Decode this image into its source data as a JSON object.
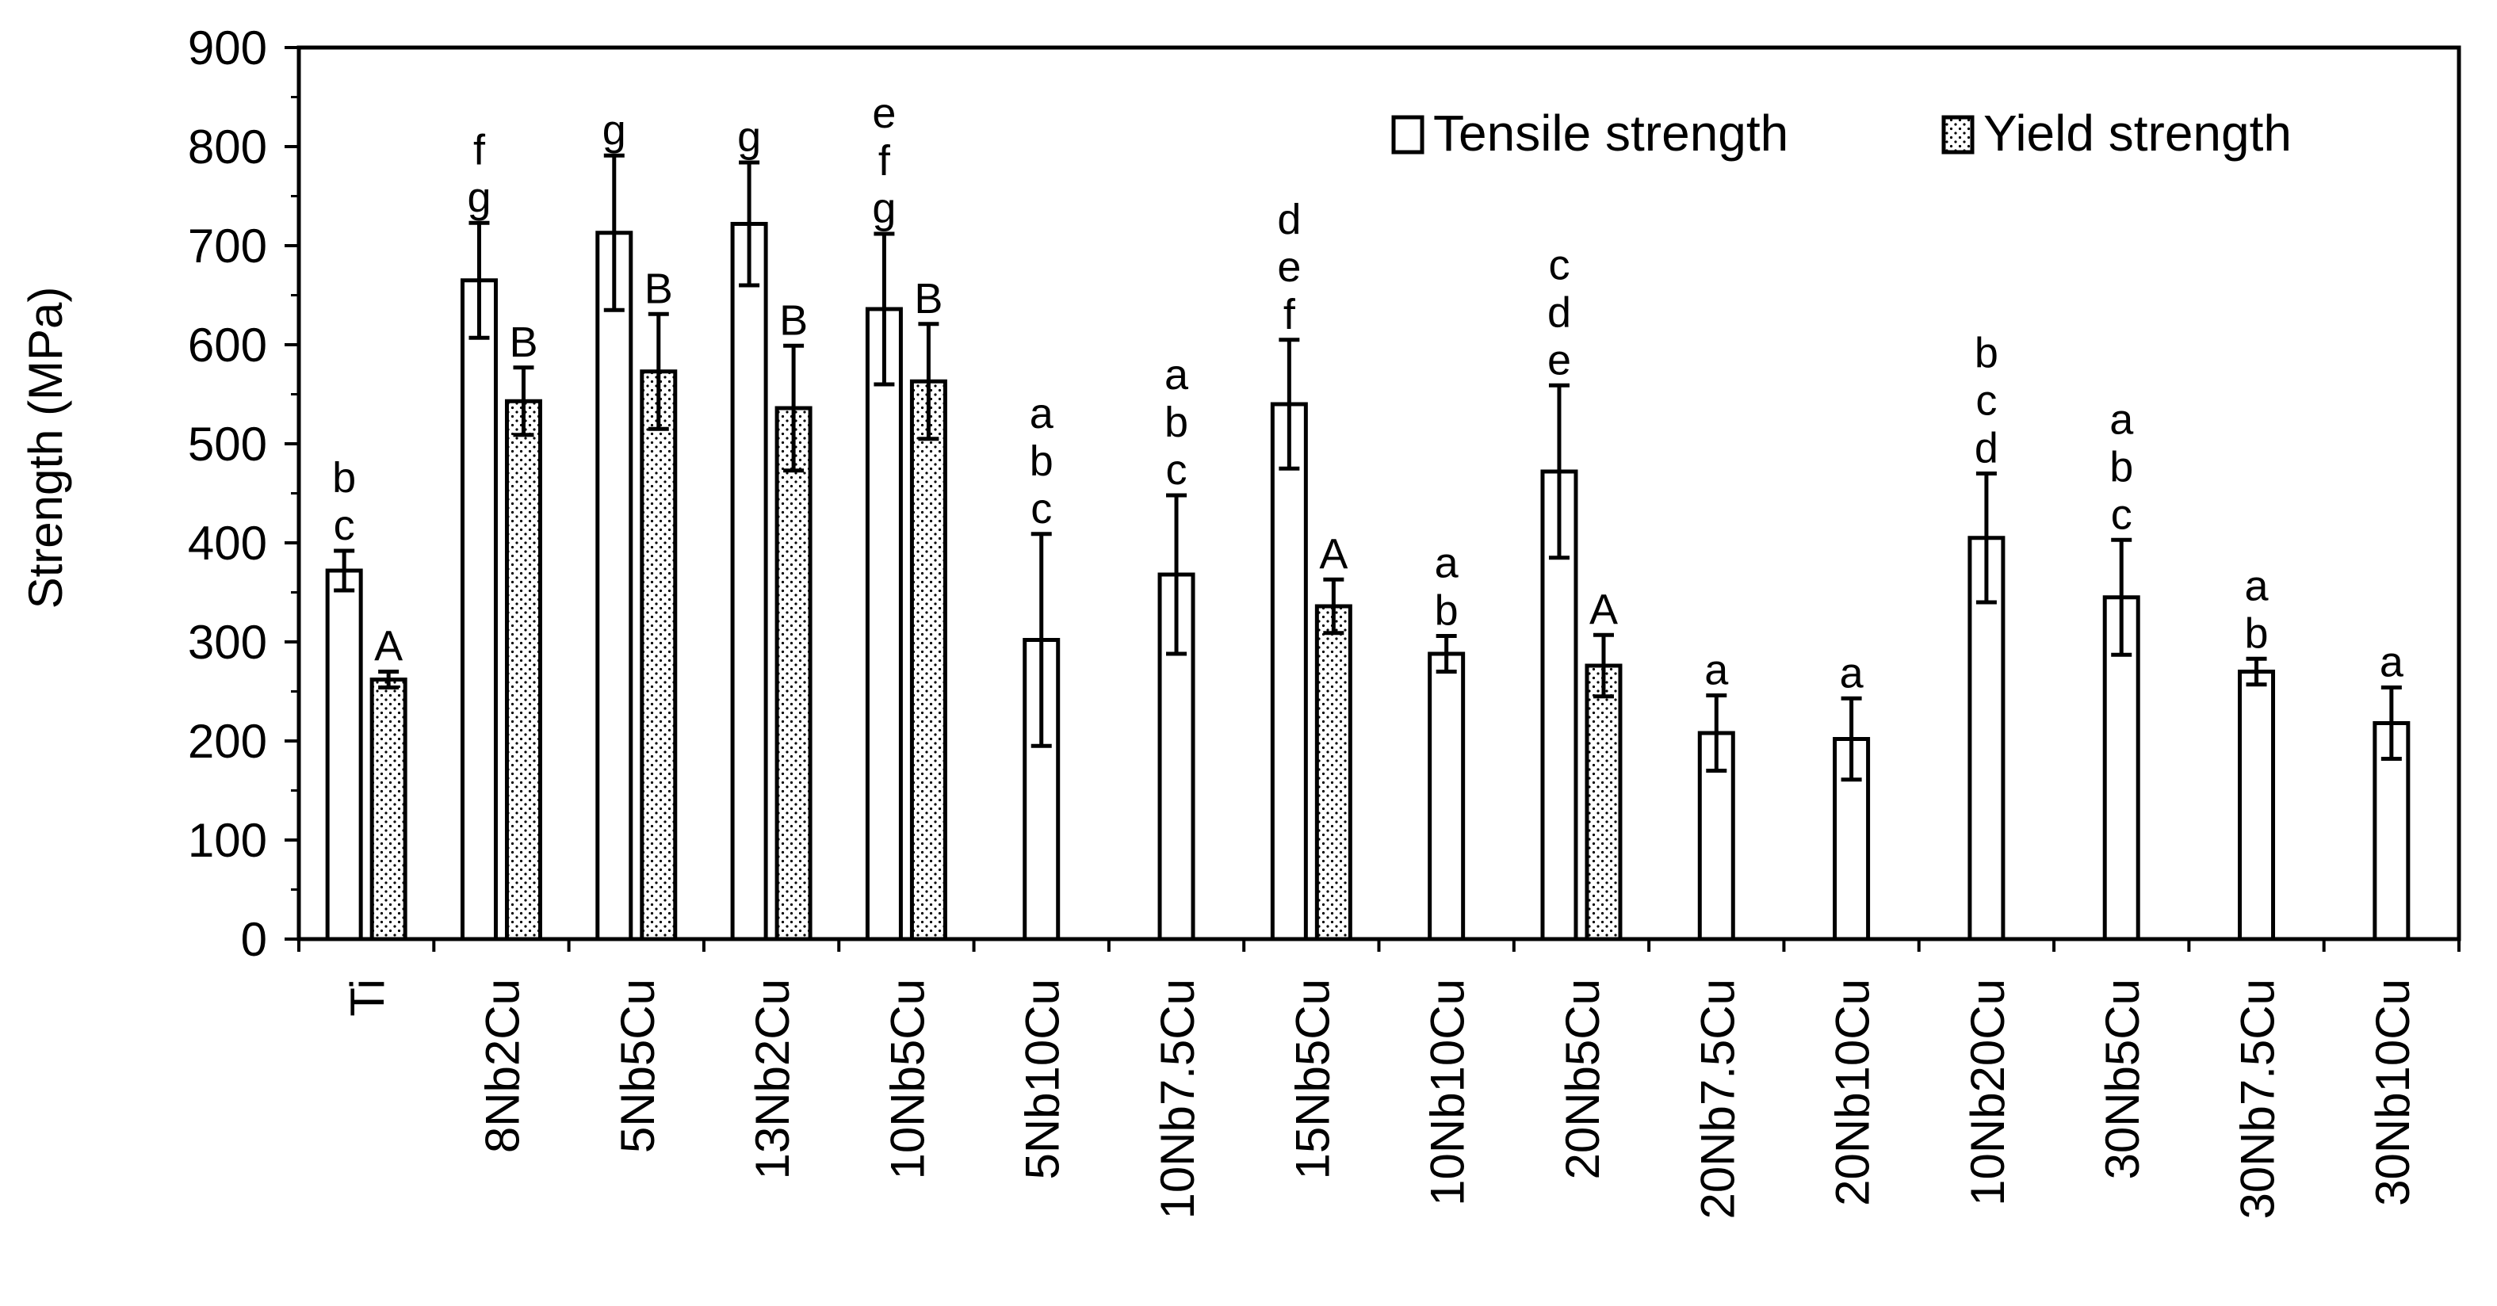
{
  "chart_data": {
    "type": "bar",
    "title": "",
    "xlabel": "",
    "ylabel": "Strength (MPa)",
    "ylim": [
      0,
      900
    ],
    "yticks": [
      0,
      100,
      200,
      300,
      400,
      500,
      600,
      700,
      800,
      900
    ],
    "grid": false,
    "legend_position": "top-right",
    "categories": [
      "Ti",
      "8Nb2Cu",
      "5Nb5Cu",
      "13Nb2Cu",
      "10Nb5Cu",
      "5Nb10Cu",
      "10Nb7.5Cu",
      "15Nb5Cu",
      "10Nb10Cu",
      "20Nb5Cu",
      "20Nb7.5Cu",
      "20Nb10Cu",
      "10Nb20Cu",
      "30Nb5Cu",
      "30Nb7.5Cu",
      "30Nb10Cu"
    ],
    "series": [
      {
        "name": "Tensile strength",
        "pattern": "open",
        "values": [
          372,
          665,
          713,
          722,
          636,
          302,
          368,
          540,
          288,
          472,
          208,
          202,
          405,
          345,
          270,
          218
        ],
        "errors": [
          20,
          58,
          78,
          62,
          76,
          107,
          80,
          65,
          18,
          87,
          38,
          41,
          65,
          58,
          13,
          36
        ],
        "letters": [
          "b c",
          "f g",
          "g",
          "g",
          "e f g",
          "a b c",
          "a b c",
          "d e f",
          "a b",
          "c d e",
          "a",
          "a",
          "b c d",
          "a b c",
          "a b",
          "a"
        ]
      },
      {
        "name": "Yield strength",
        "pattern": "dotted",
        "values": [
          262,
          543,
          573,
          536,
          563,
          null,
          null,
          336,
          null,
          276,
          null,
          null,
          null,
          null,
          null,
          null
        ],
        "errors": [
          8,
          34,
          58,
          63,
          58,
          null,
          null,
          27,
          null,
          31,
          null,
          null,
          null,
          null,
          null,
          null
        ],
        "letters": [
          "A",
          "B",
          "B",
          "B",
          "B",
          null,
          null,
          "A",
          null,
          "A",
          null,
          null,
          null,
          null,
          null,
          null
        ]
      }
    ]
  }
}
